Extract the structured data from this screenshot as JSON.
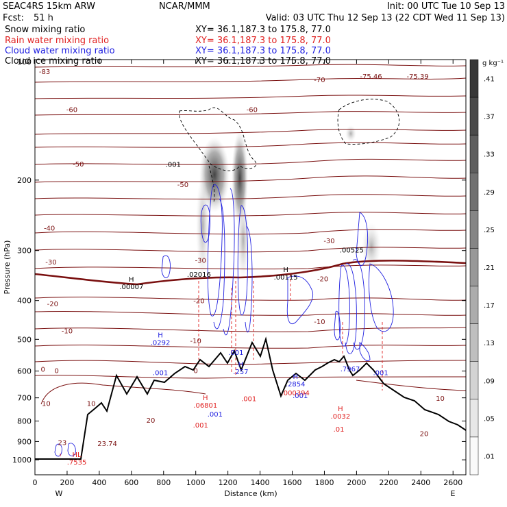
{
  "header": {
    "model": "SEAC4RS 15km ARW",
    "center": "NCAR/MMM",
    "init": "Init: 00 UTC Tue 10 Sep 13",
    "fcst_label": "Fcst:",
    "fcst_value": "51 h",
    "valid": "Valid: 03 UTC Thu 12 Sep 13 (22 CDT Wed 11 Sep 13)"
  },
  "fields": [
    {
      "name": "Snow mixing ratio",
      "color": "#000000",
      "xy": "XY=   36.1,187.3 to 175.8, 77.0"
    },
    {
      "name": "Rain water mixing ratio",
      "color": "#e02020",
      "xy": "XY=   36.1,187.3 to 175.8, 77.0"
    },
    {
      "name": "Cloud water mixing ratio",
      "color": "#2020e0",
      "xy": "XY=   36.1,187.3 to 175.8, 77.0"
    },
    {
      "name": "Cloud ice mixing ratio",
      "color": "#000000",
      "xy": "XY=   36.1,187.3 to 175.8, 77.0"
    }
  ],
  "chart_data": {
    "type": "cross-section",
    "xlabel": "Distance (km)",
    "ylabel": "Pressure (hPa)",
    "x_ticks": [
      "0",
      "200",
      "400",
      "600",
      "800",
      "1000",
      "1200",
      "1400",
      "1600",
      "1800",
      "2000",
      "2200",
      "2400",
      "2600"
    ],
    "y_ticks": [
      "200",
      "300",
      "400",
      "500",
      "600",
      "700",
      "800",
      "900",
      "1000"
    ],
    "y_top_tick": "100",
    "xlim": [
      0,
      2680
    ],
    "ylim": [
      1090,
      100
    ],
    "y_scale": "log",
    "west_label": "W",
    "east_label": "E",
    "colorbar": {
      "unit": "g kg⁻¹",
      "labels": [
        ".41",
        ".37",
        ".33",
        ".29",
        ".25",
        ".21",
        ".17",
        ".13",
        ".09",
        ".05",
        ".01"
      ],
      "values": [
        0.41,
        0.37,
        0.33,
        0.29,
        0.25,
        0.21,
        0.17,
        0.13,
        0.09,
        0.05,
        0.01
      ]
    },
    "temperature_labels": [
      {
        "text": "-83",
        "x": 60,
        "p": 107
      },
      {
        "text": "-60",
        "x": 230,
        "p": 133
      },
      {
        "text": "-60",
        "x": 1350,
        "p": 133
      },
      {
        "text": "-70",
        "x": 1770,
        "p": 112
      },
      {
        "text": "-75.46",
        "x": 2090,
        "p": 110
      },
      {
        "text": "-75.39",
        "x": 2380,
        "p": 110
      },
      {
        "text": "-50",
        "x": 270,
        "p": 182
      },
      {
        "text": "-50",
        "x": 920,
        "p": 205
      },
      {
        "text": "-40",
        "x": 90,
        "p": 263
      },
      {
        "text": "-30",
        "x": 100,
        "p": 320
      },
      {
        "text": "-30",
        "x": 1830,
        "p": 283
      },
      {
        "text": "-30",
        "x": 1030,
        "p": 317
      },
      {
        "text": "-20",
        "x": 110,
        "p": 407
      },
      {
        "text": "-20",
        "x": 1020,
        "p": 400
      },
      {
        "text": "-20",
        "x": 1790,
        "p": 352
      },
      {
        "text": "-10",
        "x": 200,
        "p": 475
      },
      {
        "text": "-10",
        "x": 1770,
        "p": 451
      },
      {
        "text": "-10",
        "x": 1000,
        "p": 503
      },
      {
        "text": "0",
        "x": 50,
        "p": 593
      },
      {
        "text": "0",
        "x": 135,
        "p": 597
      },
      {
        "text": "0",
        "x": 1000,
        "p": 597
      },
      {
        "text": "10",
        "x": 70,
        "p": 722
      },
      {
        "text": "10",
        "x": 350,
        "p": 722
      },
      {
        "text": "10",
        "x": 2520,
        "p": 701
      },
      {
        "text": "20",
        "x": 720,
        "p": 795
      },
      {
        "text": "20",
        "x": 2420,
        "p": 858
      },
      {
        "text": "23",
        "x": 170,
        "p": 903
      },
      {
        "text": "23.74",
        "x": 450,
        "p": 910
      }
    ],
    "max_labels": [
      {
        "text": ".001",
        "x": 860,
        "p": 183,
        "color": "#000000",
        "marker": ""
      },
      {
        "text": ".02016",
        "x": 1020,
        "p": 345,
        "color": "#000000",
        "marker": ""
      },
      {
        "text": ".00007",
        "x": 600,
        "p": 370,
        "color": "#000000",
        "marker": "H"
      },
      {
        "text": ".00115",
        "x": 1560,
        "p": 350,
        "color": "#000000",
        "marker": "H"
      },
      {
        "text": ".00525",
        "x": 1970,
        "p": 300,
        "color": "#000000",
        "marker": ""
      },
      {
        "text": ".0292",
        "x": 780,
        "p": 510,
        "color": "#2020e0",
        "marker": "H"
      },
      {
        "text": ".001",
        "x": 1250,
        "p": 540,
        "color": "#2020e0",
        "marker": ""
      },
      {
        "text": ".257",
        "x": 1280,
        "p": 604,
        "color": "#2020e0",
        "marker": "H"
      },
      {
        "text": ".001",
        "x": 780,
        "p": 607,
        "color": "#2020e0",
        "marker": ""
      },
      {
        "text": ".2854",
        "x": 1620,
        "p": 648,
        "color": "#2020e0",
        "marker": "H"
      },
      {
        "text": ".7967",
        "x": 1960,
        "p": 594,
        "color": "#2020e0",
        "marker": ""
      },
      {
        "text": ".001",
        "x": 2150,
        "p": 607,
        "color": "#2020e0",
        "marker": ""
      },
      {
        "text": ".001",
        "x": 1650,
        "p": 693,
        "color": "#2020e0",
        "marker": ""
      },
      {
        "text": ".001",
        "x": 1120,
        "p": 770,
        "color": "#2020e0",
        "marker": ""
      },
      {
        "text": ".000394",
        "x": 1620,
        "p": 682,
        "color": "#e02020",
        "marker": ""
      },
      {
        "text": ".06801",
        "x": 1060,
        "p": 732,
        "color": "#e02020",
        "marker": "H"
      },
      {
        "text": ".001",
        "x": 1330,
        "p": 705,
        "color": "#e02020",
        "marker": ""
      },
      {
        "text": ".001",
        "x": 1030,
        "p": 820,
        "color": "#e02020",
        "marker": ""
      },
      {
        "text": ".0032",
        "x": 1900,
        "p": 780,
        "color": "#e02020",
        "marker": "H"
      },
      {
        "text": ".01",
        "x": 1890,
        "p": 840,
        "color": "#e02020",
        "marker": ""
      },
      {
        "text": ".7535",
        "x": 260,
        "p": 1015,
        "color": "#e02020",
        "marker": "HL"
      }
    ]
  }
}
